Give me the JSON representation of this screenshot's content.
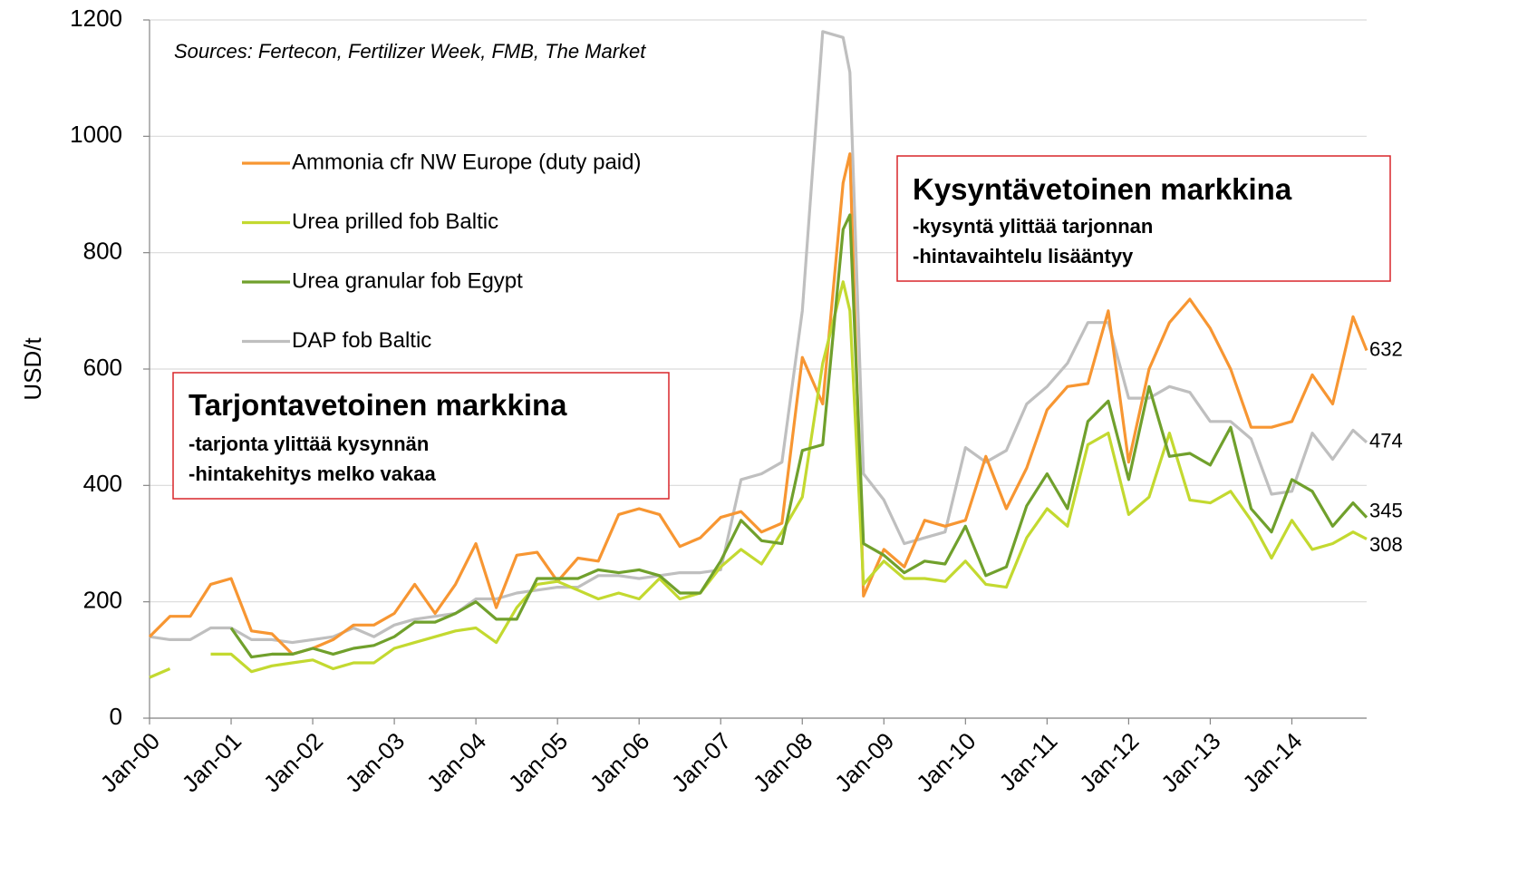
{
  "chart_data": {
    "type": "line",
    "y_label": "USD/t",
    "source_note": "Sources: Fertecon, Fertilizer Week, FMB, The Market",
    "x": [
      0,
      3,
      6,
      9,
      12,
      15,
      18,
      21,
      24,
      27,
      30,
      33,
      36,
      39,
      42,
      45,
      48,
      51,
      54,
      57,
      60,
      63,
      66,
      69,
      72,
      75,
      78,
      81,
      84,
      87,
      90,
      93,
      96,
      99,
      102,
      103,
      105,
      108,
      111,
      114,
      117,
      120,
      123,
      126,
      129,
      132,
      135,
      138,
      141,
      144,
      147,
      150,
      153,
      156,
      159,
      162,
      165,
      168,
      171,
      174,
      177,
      179
    ],
    "xlim": [
      0,
      179
    ],
    "xticks": [
      {
        "value": 0,
        "label": "Jan-00"
      },
      {
        "value": 12,
        "label": "Jan-01"
      },
      {
        "value": 24,
        "label": "Jan-02"
      },
      {
        "value": 36,
        "label": "Jan-03"
      },
      {
        "value": 48,
        "label": "Jan-04"
      },
      {
        "value": 60,
        "label": "Jan-05"
      },
      {
        "value": 72,
        "label": "Jan-06"
      },
      {
        "value": 84,
        "label": "Jan-07"
      },
      {
        "value": 96,
        "label": "Jan-08"
      },
      {
        "value": 108,
        "label": "Jan-09"
      },
      {
        "value": 120,
        "label": "Jan-10"
      },
      {
        "value": 132,
        "label": "Jan-11"
      },
      {
        "value": 144,
        "label": "Jan-12"
      },
      {
        "value": 156,
        "label": "Jan-13"
      },
      {
        "value": 168,
        "label": "Jan-14"
      }
    ],
    "ylim": [
      0,
      1200
    ],
    "yticks": [
      0,
      200,
      400,
      600,
      800,
      1000,
      1200
    ],
    "grid": true,
    "series": [
      {
        "name": "Ammonia cfr NW Europe (duty paid)",
        "color": "#f79632",
        "values": [
          140,
          175,
          175,
          230,
          240,
          150,
          145,
          110,
          120,
          135,
          160,
          160,
          180,
          230,
          180,
          230,
          300,
          190,
          280,
          285,
          235,
          275,
          270,
          350,
          360,
          350,
          295,
          310,
          345,
          355,
          320,
          335,
          620,
          540,
          920,
          970,
          210,
          290,
          260,
          340,
          330,
          340,
          450,
          360,
          430,
          530,
          570,
          575,
          700,
          440,
          600,
          680,
          720,
          670,
          600,
          500,
          500,
          510,
          590,
          540,
          690,
          632
        ]
      },
      {
        "name": "Urea prilled fob Baltic",
        "color": "#c3d930",
        "values": [
          70,
          85,
          null,
          110,
          110,
          80,
          90,
          95,
          100,
          85,
          95,
          95,
          120,
          130,
          140,
          150,
          155,
          130,
          190,
          230,
          235,
          220,
          205,
          215,
          205,
          240,
          205,
          215,
          260,
          290,
          265,
          320,
          380,
          610,
          750,
          700,
          230,
          270,
          240,
          240,
          235,
          270,
          230,
          225,
          310,
          360,
          330,
          470,
          490,
          350,
          380,
          490,
          375,
          370,
          390,
          340,
          275,
          340,
          290,
          300,
          320,
          308
        ]
      },
      {
        "name": "Urea granular fob Egypt",
        "color": "#70a02c",
        "values": [
          null,
          null,
          null,
          null,
          155,
          105,
          110,
          110,
          120,
          110,
          120,
          125,
          140,
          165,
          165,
          180,
          200,
          170,
          170,
          240,
          240,
          240,
          255,
          250,
          255,
          245,
          215,
          215,
          270,
          340,
          305,
          300,
          460,
          470,
          840,
          865,
          300,
          280,
          250,
          270,
          265,
          330,
          245,
          260,
          365,
          420,
          360,
          510,
          545,
          410,
          570,
          450,
          455,
          435,
          500,
          360,
          320,
          410,
          390,
          330,
          370,
          345
        ]
      },
      {
        "name": "DAP fob Baltic",
        "color": "#bfbfbf",
        "values": [
          140,
          135,
          135,
          155,
          155,
          135,
          135,
          130,
          135,
          140,
          155,
          140,
          160,
          170,
          175,
          180,
          205,
          205,
          215,
          220,
          225,
          225,
          245,
          245,
          240,
          245,
          250,
          250,
          255,
          410,
          420,
          440,
          700,
          1180,
          1170,
          1110,
          420,
          375,
          300,
          310,
          320,
          465,
          440,
          460,
          540,
          570,
          610,
          680,
          680,
          550,
          550,
          570,
          560,
          510,
          510,
          480,
          385,
          390,
          490,
          445,
          495,
          474
        ]
      }
    ],
    "annotations": [
      {
        "title": "Tarjontavetoinen markkina",
        "lines": [
          "-tarjonta ylittää kysynnän",
          "-hintakehitys melko vakaa"
        ]
      },
      {
        "title": "Kysyntävetoinen markkina",
        "lines": [
          "-kysyntä ylittää tarjonnan",
          "-hintavaihtelu lisääntyy"
        ]
      }
    ]
  }
}
